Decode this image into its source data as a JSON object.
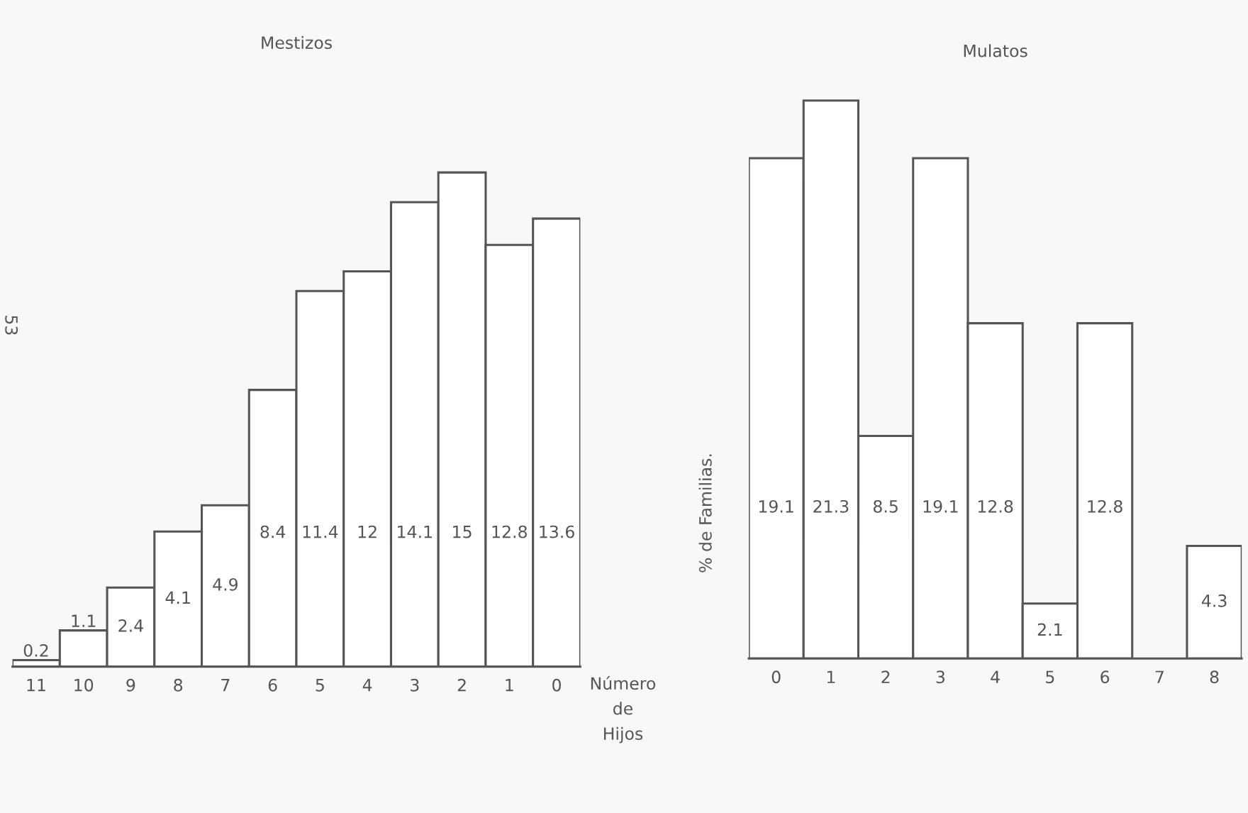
{
  "chart_data": [
    {
      "type": "bar",
      "title": "Mestizos",
      "data_labels": true,
      "xlabel": "Número\nde\nHijos",
      "categories": [
        "11",
        "10",
        "9",
        "8",
        "7",
        "6",
        "5",
        "4",
        "3",
        "2",
        "1",
        "0"
      ],
      "series": [
        {
          "color": "#ffffff",
          "values": [
            0.2,
            1.1,
            2.4,
            4.1,
            4.9,
            8.4,
            11.4,
            12,
            14.1,
            15,
            12.8,
            13.6
          ]
        }
      ],
      "annotations": [
        "53"
      ],
      "grid": false,
      "legend": false
    },
    {
      "type": "bar",
      "title": "Mulatos",
      "data_labels": true,
      "ylabel": "% de Familias.",
      "categories": [
        "0",
        "1",
        "2",
        "3",
        "4",
        "5",
        "6",
        "7",
        "8"
      ],
      "series": [
        {
          "color": "#ffffff",
          "values": [
            19.1,
            21.3,
            8.5,
            19.1,
            12.8,
            2.1,
            12.8,
            null,
            4.3
          ]
        }
      ],
      "grid": false,
      "legend": false
    }
  ]
}
